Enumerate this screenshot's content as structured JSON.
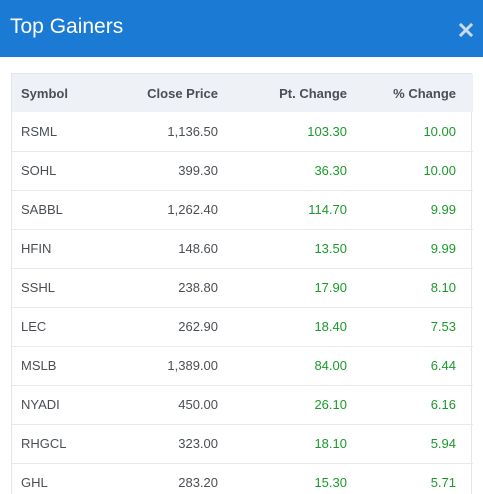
{
  "dialog": {
    "title": "Top Gainers",
    "close_icon": "close-icon",
    "accent": "#1a7ad4",
    "gain_color": "#1a9a2a"
  },
  "table": {
    "headers": {
      "symbol": "Symbol",
      "close_price": "Close Price",
      "pt_change": "Pt. Change",
      "pct_change": "% Change"
    },
    "rows": [
      {
        "symbol": "RSML",
        "close": "1,136.50",
        "pt": "103.30",
        "pct": "10.00"
      },
      {
        "symbol": "SOHL",
        "close": "399.30",
        "pt": "36.30",
        "pct": "10.00"
      },
      {
        "symbol": "SABBL",
        "close": "1,262.40",
        "pt": "114.70",
        "pct": "9.99"
      },
      {
        "symbol": "HFIN",
        "close": "148.60",
        "pt": "13.50",
        "pct": "9.99"
      },
      {
        "symbol": "SSHL",
        "close": "238.80",
        "pt": "17.90",
        "pct": "8.10"
      },
      {
        "symbol": "LEC",
        "close": "262.90",
        "pt": "18.40",
        "pct": "7.53"
      },
      {
        "symbol": "MSLB",
        "close": "1,389.00",
        "pt": "84.00",
        "pct": "6.44"
      },
      {
        "symbol": "NYADI",
        "close": "450.00",
        "pt": "26.10",
        "pct": "6.16"
      },
      {
        "symbol": "RHGCL",
        "close": "323.00",
        "pt": "18.10",
        "pct": "5.94"
      },
      {
        "symbol": "GHL",
        "close": "283.20",
        "pt": "15.30",
        "pct": "5.71"
      }
    ]
  }
}
